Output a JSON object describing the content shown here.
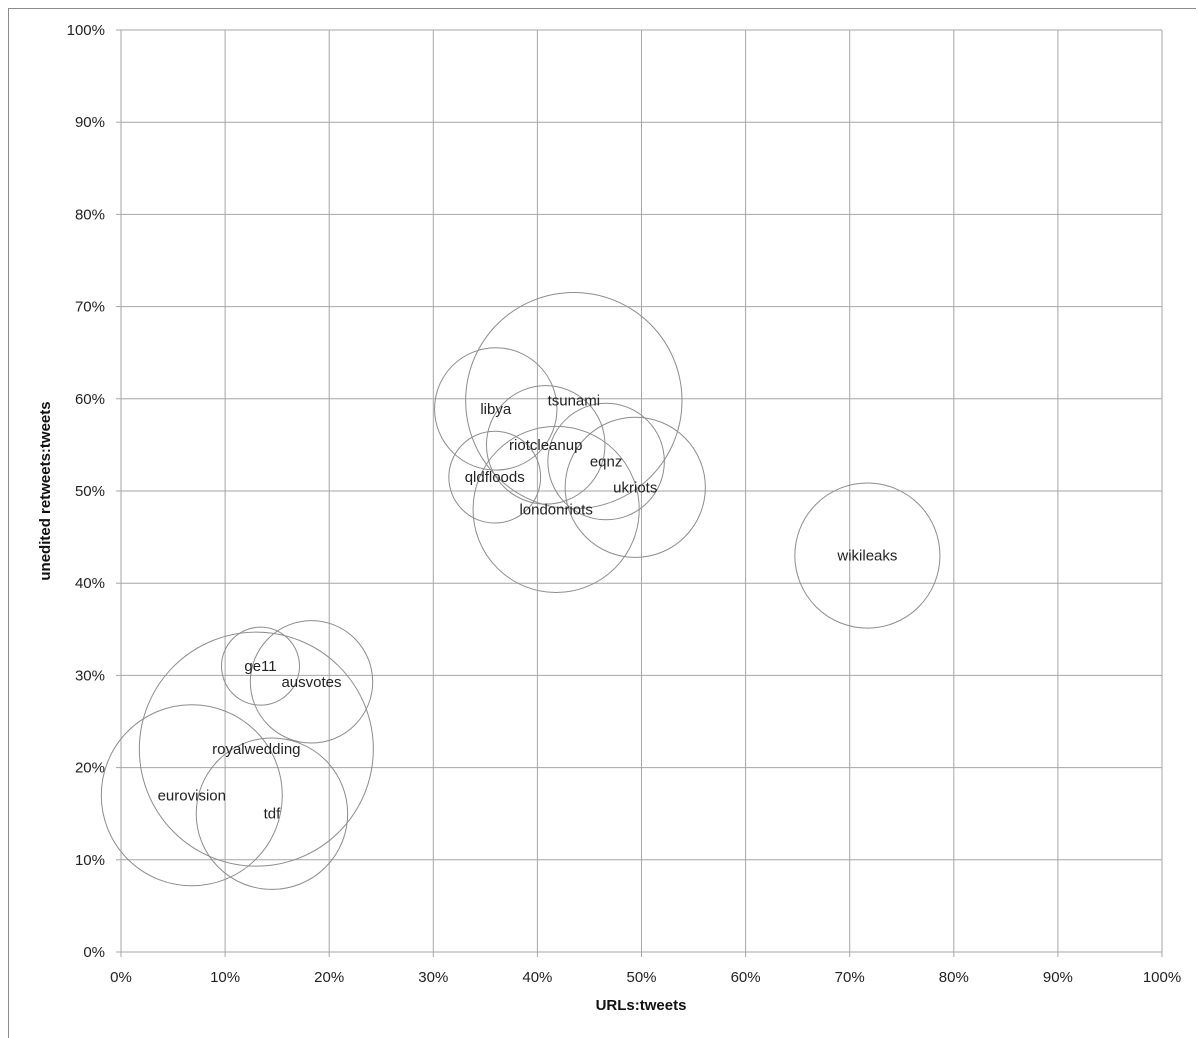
{
  "chart_data": {
    "type": "scatter",
    "variant": "bubble",
    "title": "",
    "xlabel": "URLs:tweets",
    "ylabel": "unedited retweets:tweets",
    "xlim": [
      0,
      100
    ],
    "ylim": [
      0,
      100
    ],
    "x_ticks": [
      "0%",
      "10%",
      "20%",
      "30%",
      "40%",
      "50%",
      "60%",
      "70%",
      "80%",
      "90%",
      "100%"
    ],
    "y_ticks": [
      "0%",
      "10%",
      "20%",
      "30%",
      "40%",
      "50%",
      "60%",
      "70%",
      "80%",
      "90%",
      "100%"
    ],
    "grid": true,
    "bubble_color": "#8c8c8c",
    "points": [
      {
        "label": "tsunami",
        "x": 43.5,
        "y": 59.8,
        "size": 100
      },
      {
        "label": "royalwedding",
        "x": 13.0,
        "y": 22.0,
        "size": 117
      },
      {
        "label": "eurovision",
        "x": 6.8,
        "y": 17.0,
        "size": 70
      },
      {
        "label": "tdf",
        "x": 14.5,
        "y": 15.0,
        "size": 49
      },
      {
        "label": "londonriots",
        "x": 41.8,
        "y": 48.0,
        "size": 59
      },
      {
        "label": "wikileaks",
        "x": 71.7,
        "y": 43.0,
        "size": 45
      },
      {
        "label": "ukriots",
        "x": 49.4,
        "y": 50.4,
        "size": 42
      },
      {
        "label": "ausvotes",
        "x": 18.3,
        "y": 29.3,
        "size": 32
      },
      {
        "label": "libya",
        "x": 36.0,
        "y": 58.9,
        "size": 32
      },
      {
        "label": "eqnz",
        "x": 46.6,
        "y": 53.2,
        "size": 29
      },
      {
        "label": "riotcleanup",
        "x": 40.8,
        "y": 55.0,
        "size": 30
      },
      {
        "label": "qldfloods",
        "x": 35.9,
        "y": 51.5,
        "size": 18
      },
      {
        "label": "ge11",
        "x": 13.4,
        "y": 31.0,
        "size": 13
      }
    ]
  }
}
